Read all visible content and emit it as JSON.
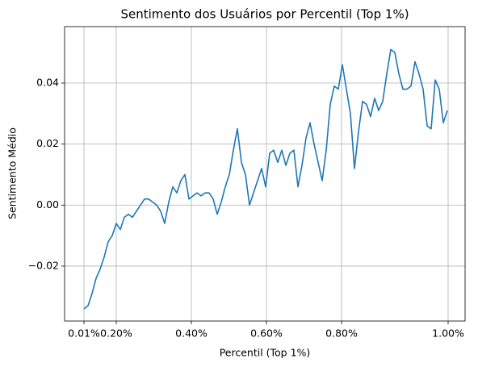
{
  "chart_data": {
    "type": "line",
    "title": "Sentimento dos Usuários por Percentil (Top 1%)",
    "xlabel": "Percentil (Top 1%)",
    "ylabel": "Sentimento Médio",
    "x": [
      0,
      1,
      2,
      3,
      4,
      5,
      6,
      7,
      8,
      9,
      10,
      11,
      12,
      13,
      14,
      15,
      16,
      17,
      18,
      19,
      20,
      21,
      22,
      23,
      24,
      25,
      26,
      27,
      28,
      29,
      30,
      31,
      32,
      33,
      34,
      35,
      36,
      37,
      38,
      39,
      40,
      41,
      42,
      43,
      44,
      45,
      46,
      47,
      48,
      49,
      50,
      51,
      52,
      53,
      54,
      55,
      56,
      57,
      58,
      59,
      60,
      61,
      62,
      63,
      64,
      65,
      66,
      67,
      68,
      69,
      70,
      71,
      72,
      73,
      74,
      75,
      76,
      77,
      78,
      79,
      80,
      81,
      82,
      83,
      84,
      85,
      86,
      87,
      88,
      89,
      90
    ],
    "series": [
      {
        "name": "Sentimento Médio",
        "color": "#1f77b4",
        "values": [
          -0.034,
          -0.033,
          -0.029,
          -0.024,
          -0.021,
          -0.017,
          -0.012,
          -0.01,
          -0.006,
          -0.008,
          -0.004,
          -0.003,
          -0.004,
          -0.002,
          0.0,
          0.002,
          0.002,
          0.001,
          0.0,
          -0.002,
          -0.006,
          0.001,
          0.006,
          0.004,
          0.008,
          0.01,
          0.002,
          0.003,
          0.004,
          0.003,
          0.004,
          0.004,
          0.002,
          -0.003,
          0.001,
          0.006,
          0.01,
          0.018,
          0.025,
          0.014,
          0.01,
          0.0,
          0.004,
          0.008,
          0.012,
          0.006,
          0.017,
          0.018,
          0.014,
          0.018,
          0.013,
          0.017,
          0.018,
          0.006,
          0.013,
          0.022,
          0.027,
          0.02,
          0.014,
          0.008,
          0.018,
          0.033,
          0.039,
          0.038,
          0.046,
          0.038,
          0.03,
          0.012,
          0.024,
          0.034,
          0.033,
          0.029,
          0.035,
          0.031,
          0.034,
          0.043,
          0.051,
          0.05,
          0.043,
          0.038,
          0.038,
          0.039,
          0.047,
          0.043,
          0.038,
          0.026,
          0.025,
          0.041,
          0.038,
          0.027,
          0.031
        ]
      }
    ],
    "xlim": [
      -4.8,
      94.4
    ],
    "xticks": [
      {
        "value": 0,
        "label": "0.01%"
      },
      {
        "value": 8,
        "label": "0.20%"
      },
      {
        "value": 26.6,
        "label": "0.40%"
      },
      {
        "value": 45.2,
        "label": "0.60%"
      },
      {
        "value": 63.8,
        "label": "0.80%"
      },
      {
        "value": 90.2,
        "label": "1.00%"
      }
    ],
    "ylim": [
      -0.038,
      0.0585
    ],
    "yticks": [
      {
        "value": -0.02,
        "label": "−0.02"
      },
      {
        "value": 0,
        "label": "0.00"
      },
      {
        "value": 0.02,
        "label": "0.02"
      },
      {
        "value": 0.04,
        "label": "0.04"
      }
    ],
    "grid": true
  }
}
